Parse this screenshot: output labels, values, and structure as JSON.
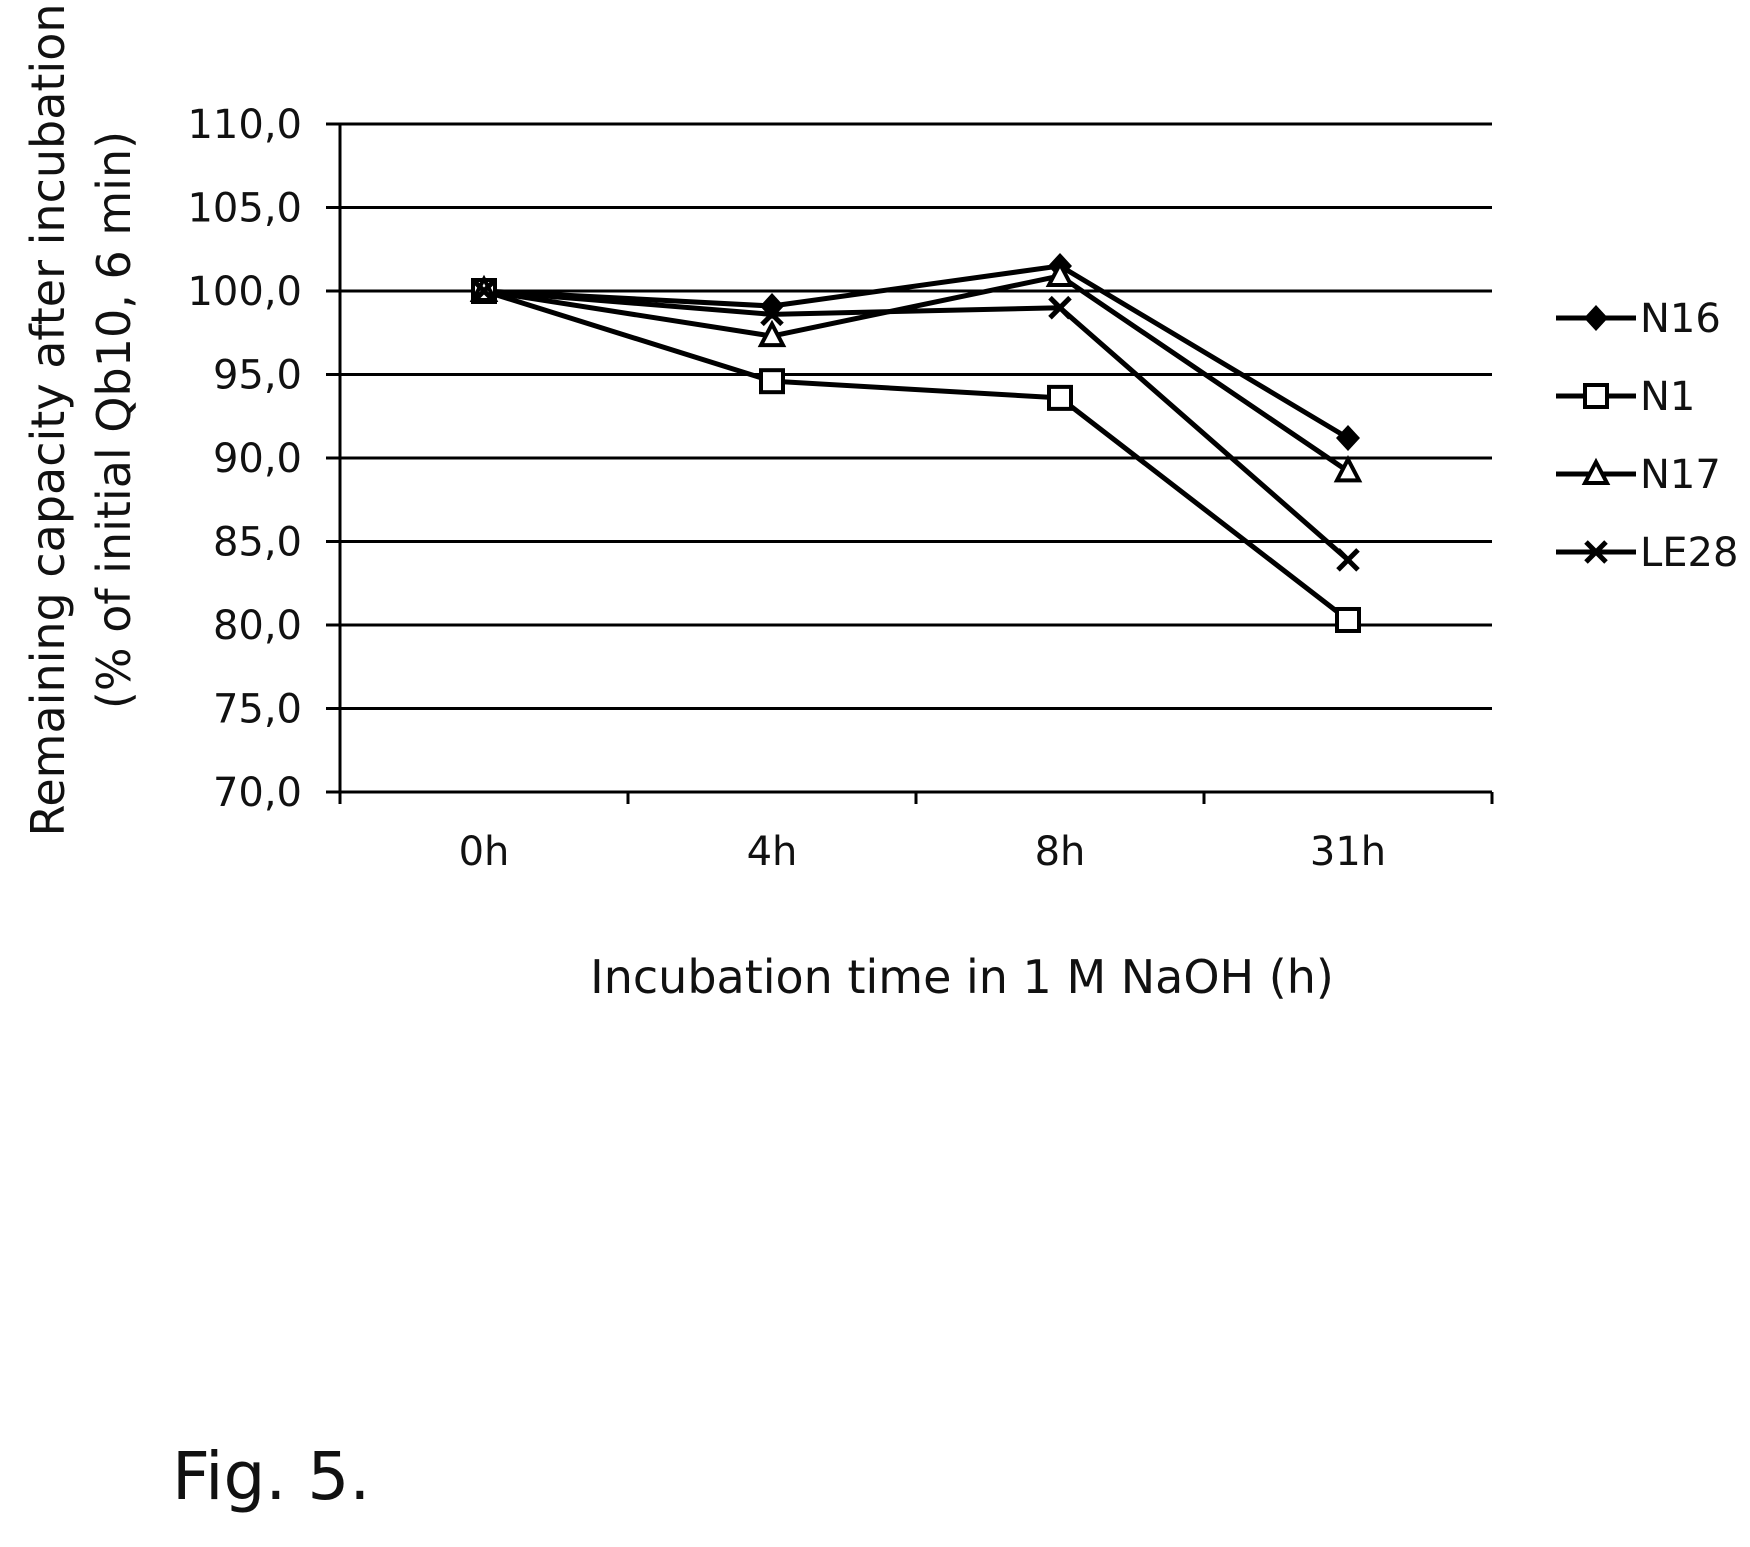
{
  "chart_data": {
    "type": "line",
    "title": "",
    "xlabel": "Incubation time in 1 M NaOH (h)",
    "ylabel": [
      "Remaining capacity after  incubation",
      "(% of initial Qb10, 6 min)"
    ],
    "categories": [
      "0h",
      "4h",
      "8h",
      "31h"
    ],
    "ylim": [
      70,
      110
    ],
    "yticks": [
      "70,0",
      "75,0",
      "80,0",
      "85,0",
      "90,0",
      "95,0",
      "100,0",
      "105,0",
      "110,0"
    ],
    "grid": true,
    "legend_position": "right",
    "series": [
      {
        "name": "N16",
        "marker": "diamond",
        "values": [
          100.0,
          99.1,
          101.5,
          91.2
        ]
      },
      {
        "name": "N1",
        "marker": "square-open",
        "values": [
          100.0,
          94.6,
          93.6,
          80.3
        ]
      },
      {
        "name": "N17",
        "marker": "triangle-open",
        "values": [
          100.0,
          97.3,
          100.9,
          89.2
        ]
      },
      {
        "name": "LE28",
        "marker": "x",
        "values": [
          100.0,
          98.6,
          99.0,
          83.9
        ]
      }
    ]
  },
  "caption": "Fig. 5."
}
